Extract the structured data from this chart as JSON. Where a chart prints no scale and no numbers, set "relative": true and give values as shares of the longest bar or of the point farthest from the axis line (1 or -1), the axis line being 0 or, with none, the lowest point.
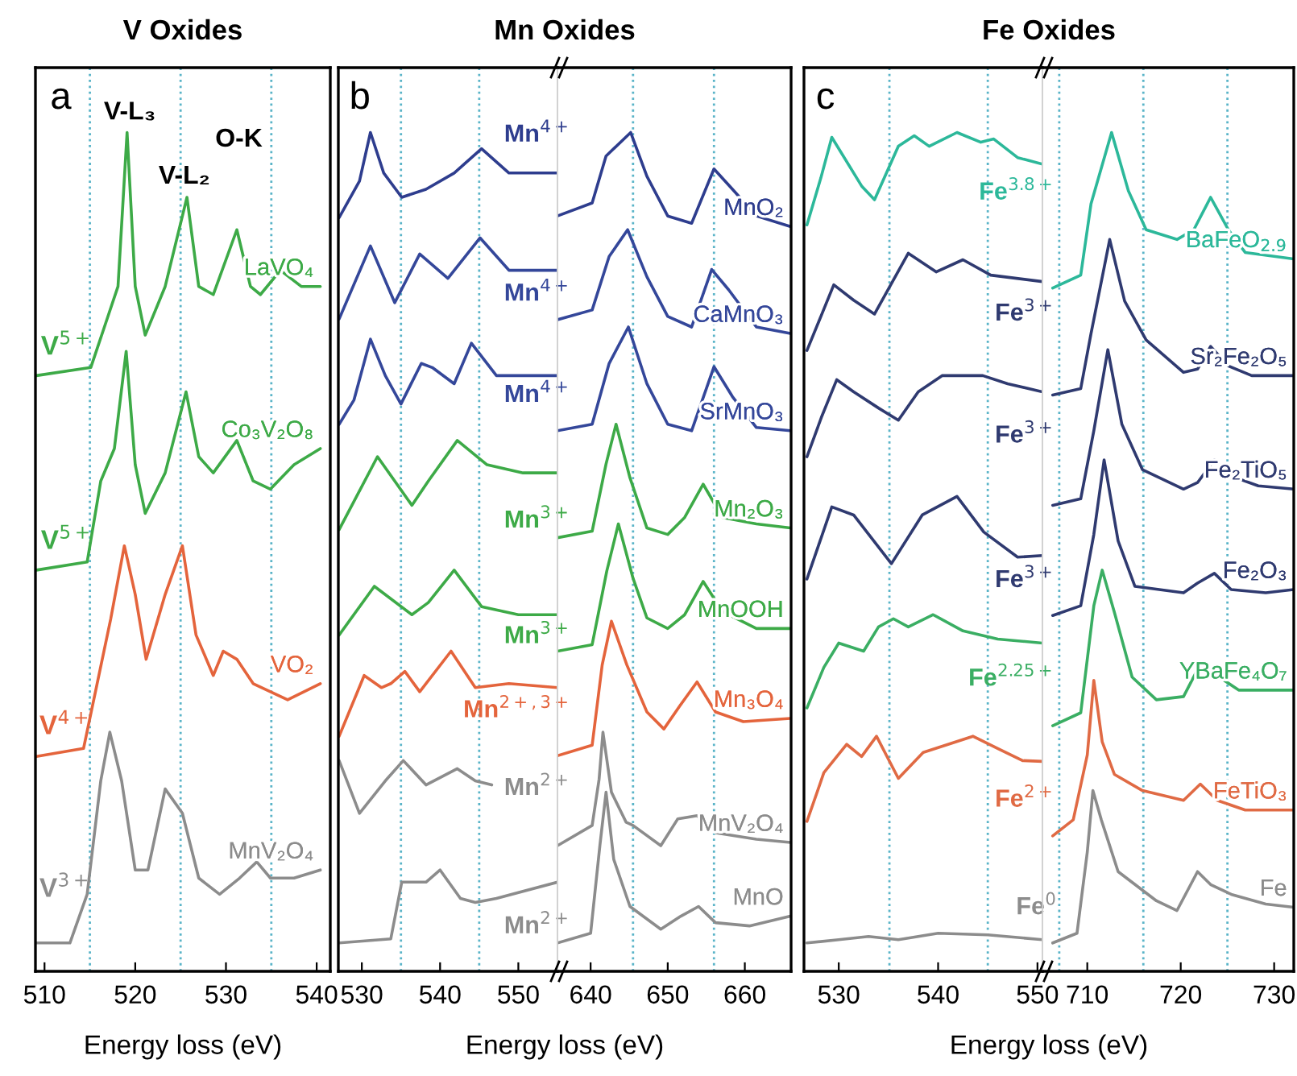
{
  "chart_data": [
    {
      "type": "line",
      "relative": true,
      "title": "V Oxides",
      "xlabel": "Energy loss (eV)",
      "xlim": [
        509,
        541.5
      ],
      "xticks": [
        510,
        520,
        530,
        540
      ],
      "ref_lines": [
        {
          "axis": "x",
          "value": 515,
          "color": "#5ab4c8",
          "line_style": "dotted"
        },
        {
          "axis": "x",
          "value": 525,
          "color": "#5ab4c8",
          "line_style": "dotted"
        },
        {
          "axis": "x",
          "value": 535,
          "color": "#5ab4c8",
          "line_style": "dotted"
        }
      ],
      "annotations": [
        "a",
        "V-L₃",
        "V-L₂",
        "O-K",
        "V$^{5+}$",
        "V$^{5+}$",
        "V$^{4+}$",
        "V$^{3+}$"
      ],
      "series": [
        {
          "name": "LaVO₄",
          "color": "#3daa47",
          "x": [
            509.1,
            515.1,
            516.6,
            518.1,
            519.1,
            520,
            521.1,
            523.3,
            525.7,
            527,
            528.6,
            531.2,
            532.7,
            533.8,
            536,
            538.3,
            540.4
          ],
          "values": [
            0.7,
            0.71,
            0.76,
            0.81,
            1.0,
            0.81,
            0.75,
            0.81,
            0.92,
            0.81,
            0.8,
            0.88,
            0.81,
            0.8,
            0.83,
            0.81,
            0.81
          ]
        },
        {
          "name": "Co₃V₂O₈",
          "color": "#3daa47",
          "x": [
            509.1,
            514.7,
            516.2,
            517.7,
            519,
            520,
            521.1,
            523.3,
            525.6,
            527,
            528.6,
            531.2,
            533,
            534.9,
            537.5,
            540.4
          ],
          "values": [
            0.46,
            0.47,
            0.57,
            0.61,
            0.73,
            0.59,
            0.53,
            0.58,
            0.68,
            0.6,
            0.58,
            0.62,
            0.57,
            0.56,
            0.59,
            0.61
          ]
        },
        {
          "name": "VO₂",
          "color": "#e4643c",
          "x": [
            509.1,
            514.3,
            515.8,
            517.3,
            518.8,
            520,
            521.2,
            523.3,
            525.2,
            526.7,
            528.6,
            529.7,
            531.2,
            533,
            536.8,
            540.4
          ],
          "values": [
            0.23,
            0.24,
            0.32,
            0.4,
            0.49,
            0.43,
            0.35,
            0.43,
            0.49,
            0.38,
            0.33,
            0.36,
            0.35,
            0.32,
            0.3,
            0.32
          ]
        },
        {
          "name": "MnV₂O₄",
          "color": "#8c8c8c",
          "x": [
            509.1,
            512.8,
            514.7,
            516.2,
            517.2,
            518.5,
            520,
            521.4,
            523.3,
            525.2,
            527,
            529.3,
            531.5,
            533.4,
            534.9,
            537.5,
            540.4
          ],
          "values": [
            0,
            0.0,
            0.06,
            0.2,
            0.26,
            0.2,
            0.09,
            0.09,
            0.19,
            0.16,
            0.08,
            0.06,
            0.08,
            0.1,
            0.08,
            0.08,
            0.09
          ]
        }
      ]
    },
    {
      "type": "line",
      "relative": true,
      "title": "Mn Oxides",
      "xlabel": "Energy loss (eV)",
      "xlim": [
        527,
        555
      ],
      "xticks": [
        530,
        540,
        550
      ],
      "ref_lines": [
        {
          "axis": "x",
          "value": 535,
          "color": "#5ab4c8",
          "line_style": "dotted"
        },
        {
          "axis": "x",
          "value": 545,
          "color": "#5ab4c8",
          "line_style": "dotted"
        }
      ],
      "annotations": [
        "b",
        "Mn$^{4+}$",
        "Mn$^{4+}$",
        "Mn$^{4+}$",
        "Mn$^{3+}$",
        "Mn$^{3+}$",
        "Mn$^{2+,3+}$",
        "Mn$^{2+}$",
        "Mn$^{2+}$"
      ],
      "series": [
        {
          "color": "#2e3d8e",
          "x": [
            527.1,
            529.7,
            531.1,
            532.8,
            535.1,
            538.2,
            541.8,
            545.3,
            548.8,
            555
          ],
          "values": [
            0.895,
            0.94,
            1.0,
            0.95,
            0.92,
            0.93,
            0.95,
            0.98,
            0.95,
            0.95
          ]
        },
        {
          "color": "#34479a",
          "x": [
            527.1,
            531.1,
            534.2,
            537.4,
            541,
            545.1,
            548.8,
            555
          ],
          "values": [
            0.77,
            0.86,
            0.79,
            0.85,
            0.82,
            0.87,
            0.83,
            0.83
          ]
        },
        {
          "color": "#34479a",
          "x": [
            527.1,
            529,
            531.1,
            533,
            535,
            537.6,
            539,
            541.8,
            544,
            547.2,
            555
          ],
          "values": [
            0.64,
            0.67,
            0.745,
            0.7,
            0.665,
            0.715,
            0.71,
            0.69,
            0.74,
            0.7,
            0.7
          ]
        },
        {
          "color": "#3daa47",
          "x": [
            527.1,
            532,
            536.4,
            538.5,
            542.2,
            546,
            550.6,
            555
          ],
          "values": [
            0.51,
            0.6,
            0.54,
            0.57,
            0.62,
            0.59,
            0.58,
            0.58
          ]
        },
        {
          "color": "#3daa47",
          "x": [
            527.1,
            531.6,
            536.4,
            538.5,
            541.8,
            545.3,
            550,
            555
          ],
          "values": [
            0.38,
            0.44,
            0.405,
            0.42,
            0.46,
            0.415,
            0.405,
            0.405
          ]
        },
        {
          "color": "#e4643c",
          "x": [
            527.1,
            530.3,
            532.5,
            533.7,
            535.5,
            537.4,
            541.4,
            544.5,
            548.8,
            555
          ],
          "values": [
            0.255,
            0.33,
            0.315,
            0.32,
            0.335,
            0.31,
            0.36,
            0.315,
            0.32,
            0.315
          ]
        },
        {
          "color": "#8c8c8c",
          "x": [
            527.1,
            529.7,
            533,
            535.3,
            538.2,
            542.2,
            544.5,
            546.6
          ],
          "values": [
            0.225,
            0.16,
            0.2,
            0.225,
            0.195,
            0.215,
            0.2,
            0.195
          ]
        },
        {
          "color": "#8c8c8c",
          "x": [
            527.1,
            533.7,
            535.1,
            538.2,
            540,
            542.6,
            544.5,
            547.2,
            555
          ],
          "values": [
            0,
            0.005,
            0.075,
            0.075,
            0.09,
            0.055,
            0.05,
            0.055,
            0.075
          ]
        }
      ]
    },
    {
      "type": "line",
      "relative": true,
      "xlim": [
        635.7,
        666
      ],
      "xticks": [
        640,
        650,
        660
      ],
      "ref_lines": [
        {
          "axis": "x",
          "value": 645.5,
          "color": "#5ab4c8",
          "line_style": "dotted"
        },
        {
          "axis": "x",
          "value": 656,
          "color": "#5ab4c8",
          "line_style": "dotted"
        }
      ],
      "series": [
        {
          "name": "MnO₂",
          "color": "#2e3d8e",
          "x": [
            635.7,
            640.2,
            642,
            645.2,
            647.3,
            650,
            653.1,
            656,
            658.4,
            661.5,
            665.9
          ],
          "values": [
            0.897,
            0.913,
            0.971,
            1.0,
            0.946,
            0.897,
            0.888,
            0.955,
            0.93,
            0.897,
            0.884
          ]
        },
        {
          "name": "CaMnO₃",
          "color": "#34479a",
          "x": [
            635.7,
            640.2,
            642.4,
            644.8,
            647.3,
            650,
            653.1,
            655.7,
            657.9,
            661.5,
            665.9
          ],
          "values": [
            0.769,
            0.781,
            0.847,
            0.88,
            0.822,
            0.773,
            0.76,
            0.831,
            0.806,
            0.76,
            0.752
          ]
        },
        {
          "name": "SrMnO₃",
          "color": "#34479a",
          "x": [
            635.7,
            640.2,
            642.4,
            644.9,
            647.3,
            650,
            653.1,
            656,
            658.4,
            661.5,
            665.9
          ],
          "values": [
            0.632,
            0.64,
            0.715,
            0.76,
            0.69,
            0.64,
            0.632,
            0.711,
            0.674,
            0.636,
            0.632
          ]
        },
        {
          "name": "Mn₂O₃",
          "color": "#3daa47",
          "x": [
            635.7,
            640.2,
            642,
            643.3,
            645.1,
            647.3,
            650,
            652.2,
            654.6,
            657.1,
            661.5,
            665.9
          ],
          "values": [
            0.5,
            0.508,
            0.591,
            0.64,
            0.574,
            0.512,
            0.504,
            0.525,
            0.566,
            0.525,
            0.517,
            0.512
          ]
        },
        {
          "name": "MnOOH",
          "color": "#3daa47",
          "x": [
            635.7,
            640.2,
            642.1,
            643.6,
            645.5,
            647.3,
            650,
            652.2,
            654.6,
            657.1,
            661.5,
            665.9
          ],
          "values": [
            0.36,
            0.368,
            0.459,
            0.517,
            0.45,
            0.401,
            0.388,
            0.405,
            0.446,
            0.409,
            0.388,
            0.388
          ]
        },
        {
          "name": "Mn₃O₄",
          "color": "#e4643c",
          "x": [
            635.7,
            640.2,
            641.5,
            642.7,
            644.7,
            647.3,
            649.5,
            651.6,
            653.8,
            656.2,
            659.8,
            665.9
          ],
          "values": [
            0.231,
            0.244,
            0.343,
            0.397,
            0.343,
            0.285,
            0.264,
            0.293,
            0.322,
            0.285,
            0.273,
            0.277
          ]
        },
        {
          "name": "MnV₂O₄",
          "color": "#8c8c8c",
          "x": [
            635.7,
            640.2,
            641.1,
            641.6,
            642.7,
            644.6,
            645.5,
            649.1,
            651.3,
            653.8,
            656.2,
            661.5,
            665.9
          ],
          "values": [
            0.12,
            0.145,
            0.202,
            0.26,
            0.186,
            0.149,
            0.145,
            0.12,
            0.153,
            0.157,
            0.136,
            0.128,
            0.124
          ]
        },
        {
          "name": "MnO",
          "color": "#8c8c8c",
          "x": [
            635.7,
            640,
            641.2,
            642,
            643,
            645.1,
            649.1,
            651.7,
            654,
            656.2,
            660.6,
            665.9
          ],
          "values": [
            0,
            0.012,
            0.12,
            0.186,
            0.103,
            0.045,
            0.017,
            0.033,
            0.045,
            0.025,
            0.021,
            0.033
          ]
        }
      ]
    },
    {
      "type": "line",
      "relative": true,
      "title": "Fe Oxides",
      "xlabel": "Energy loss (eV)",
      "xlim": [
        526.5,
        550.5
      ],
      "xticks": [
        530,
        540,
        550
      ],
      "ref_lines": [
        {
          "axis": "x",
          "value": 535.1,
          "color": "#5ab4c8",
          "line_style": "dotted"
        },
        {
          "axis": "x",
          "value": 545,
          "color": "#5ab4c8",
          "line_style": "dotted"
        }
      ],
      "annotations": [
        "c",
        "Fe$^{3.8+}$",
        "Fe$^{3+}$",
        "Fe$^{3+}$",
        "Fe$^{3+}$",
        "Fe$^{2.25+}$",
        "Fe$^{2+}$",
        "Fe$^{0}$"
      ],
      "series": [
        {
          "color": "#2cb89a",
          "x": [
            526.8,
            528.2,
            529.3,
            532.3,
            533.6,
            536,
            537.6,
            539.1,
            541.9,
            544.3,
            545.6,
            548,
            550.5
          ],
          "values": [
            0.886,
            0.944,
            0.994,
            0.934,
            0.917,
            0.983,
            0.996,
            0.983,
            1.0,
            0.988,
            0.992,
            0.969,
            0.961
          ]
        },
        {
          "color": "#2f3a70",
          "x": [
            526.8,
            529.5,
            531.5,
            533.6,
            537,
            539.8,
            542.5,
            545.3,
            550.5
          ],
          "values": [
            0.731,
            0.812,
            0.793,
            0.776,
            0.851,
            0.828,
            0.843,
            0.824,
            0.816
          ]
        },
        {
          "color": "#2f3a70",
          "x": [
            526.8,
            528.3,
            529.8,
            531.5,
            534,
            536,
            538,
            540.4,
            544.5,
            547,
            550.5
          ],
          "values": [
            0.6,
            0.65,
            0.695,
            0.68,
            0.66,
            0.645,
            0.68,
            0.7,
            0.7,
            0.69,
            0.68
          ]
        },
        {
          "color": "#2f3a70",
          "x": [
            526.8,
            529.3,
            531.5,
            535.3,
            538.4,
            541.9,
            544.6,
            548,
            550.5
          ],
          "values": [
            0.449,
            0.538,
            0.528,
            0.468,
            0.528,
            0.551,
            0.507,
            0.476,
            0.478
          ]
        },
        {
          "color": "#3aae63",
          "x": [
            526.8,
            528.5,
            530,
            532.5,
            534,
            535.5,
            537,
            539.5,
            542.5,
            546,
            550.5
          ],
          "values": [
            0.29,
            0.34,
            0.37,
            0.36,
            0.39,
            0.4,
            0.39,
            0.405,
            0.385,
            0.375,
            0.37
          ]
        },
        {
          "color": "#e06a44",
          "x": [
            526.8,
            528.5,
            530.8,
            532.3,
            533.8,
            536,
            538.5,
            541,
            543.5,
            546,
            548.5,
            550.5
          ],
          "values": [
            0.15,
            0.21,
            0.245,
            0.23,
            0.255,
            0.203,
            0.235,
            0.245,
            0.255,
            0.24,
            0.225,
            0.224
          ]
        },
        {
          "color": "#8c8c8c",
          "x": [
            526.8,
            530,
            533,
            536,
            540,
            545,
            550.5
          ],
          "values": [
            0,
            0.004,
            0.008,
            0.004,
            0.012,
            0.01,
            0.004
          ]
        }
      ]
    },
    {
      "type": "line",
      "relative": true,
      "xlim": [
        705.2,
        732.1
      ],
      "xticks": [
        710,
        720,
        730
      ],
      "ref_lines": [
        {
          "axis": "x",
          "value": 707,
          "color": "#5ab4c8",
          "line_style": "dotted"
        },
        {
          "axis": "x",
          "value": 716,
          "color": "#5ab4c8",
          "line_style": "dotted"
        },
        {
          "axis": "x",
          "value": 725,
          "color": "#5ab4c8",
          "line_style": "dotted"
        }
      ],
      "series": [
        {
          "name": "BaFeO$_{2.9}$",
          "color": "#2cb89a",
          "x": [
            706.3,
            709.3,
            710.4,
            712.6,
            714.4,
            716.3,
            719.6,
            721.4,
            723.2,
            725.1,
            726.9,
            732.1
          ],
          "values": [
            0.808,
            0.824,
            0.912,
            1.0,
            0.928,
            0.88,
            0.868,
            0.88,
            0.92,
            0.88,
            0.852,
            0.844
          ]
        },
        {
          "name": "Sr₂Fe₂O₅",
          "color": "#2f3a70",
          "x": [
            706.3,
            709.3,
            710.4,
            712.4,
            714,
            716.3,
            720.3,
            721.8,
            723.2,
            725.1,
            727.6,
            732.1
          ],
          "values": [
            0.676,
            0.684,
            0.752,
            0.868,
            0.792,
            0.744,
            0.704,
            0.708,
            0.736,
            0.712,
            0.7,
            0.7
          ]
        },
        {
          "name": "Fe₂TiO₅",
          "color": "#2f3a70",
          "x": [
            706.3,
            709.3,
            710.7,
            712.2,
            713.7,
            715.9,
            720.3,
            721.8,
            723.6,
            725.4,
            728.3,
            732.1
          ],
          "values": [
            0.54,
            0.548,
            0.632,
            0.732,
            0.64,
            0.584,
            0.56,
            0.568,
            0.596,
            0.576,
            0.564,
            0.56
          ]
        },
        {
          "name": "Fe₂O₃",
          "color": "#2f3a70",
          "x": [
            706.3,
            709.3,
            710.7,
            711.8,
            713.3,
            715.1,
            720.3,
            721.8,
            723.6,
            725.4,
            729.1,
            732.1
          ],
          "values": [
            0.404,
            0.416,
            0.504,
            0.596,
            0.496,
            0.44,
            0.432,
            0.444,
            0.456,
            0.436,
            0.432,
            0.436
          ]
        },
        {
          "name": "YBaFe₄O₇",
          "color": "#3aae63",
          "x": [
            706.3,
            709.3,
            710.7,
            711.6,
            712.9,
            714.8,
            717.4,
            720.3,
            722.1,
            723.6,
            726.2,
            732.1
          ],
          "values": [
            0.268,
            0.284,
            0.416,
            0.46,
            0.408,
            0.328,
            0.3,
            0.304,
            0.344,
            0.332,
            0.312,
            0.312
          ]
        },
        {
          "name": "FeTiO₃",
          "color": "#e06a44",
          "x": [
            706.3,
            708.5,
            710,
            710.7,
            711.6,
            712.9,
            715.9,
            720.3,
            722.1,
            723.9,
            726.9,
            732.1
          ],
          "values": [
            0.132,
            0.152,
            0.232,
            0.324,
            0.248,
            0.208,
            0.188,
            0.176,
            0.196,
            0.176,
            0.164,
            0.164
          ]
        },
        {
          "name": "Fe",
          "color": "#8c8c8c",
          "x": [
            706.3,
            708.9,
            710,
            710.6,
            711.5,
            713.3,
            717.4,
            719.6,
            721.8,
            723.2,
            725.4,
            729.1,
            732.1
          ],
          "values": [
            0.0,
            0.012,
            0.112,
            0.188,
            0.152,
            0.088,
            0.052,
            0.04,
            0.088,
            0.072,
            0.06,
            0.048,
            0.044
          ]
        }
      ]
    }
  ]
}
